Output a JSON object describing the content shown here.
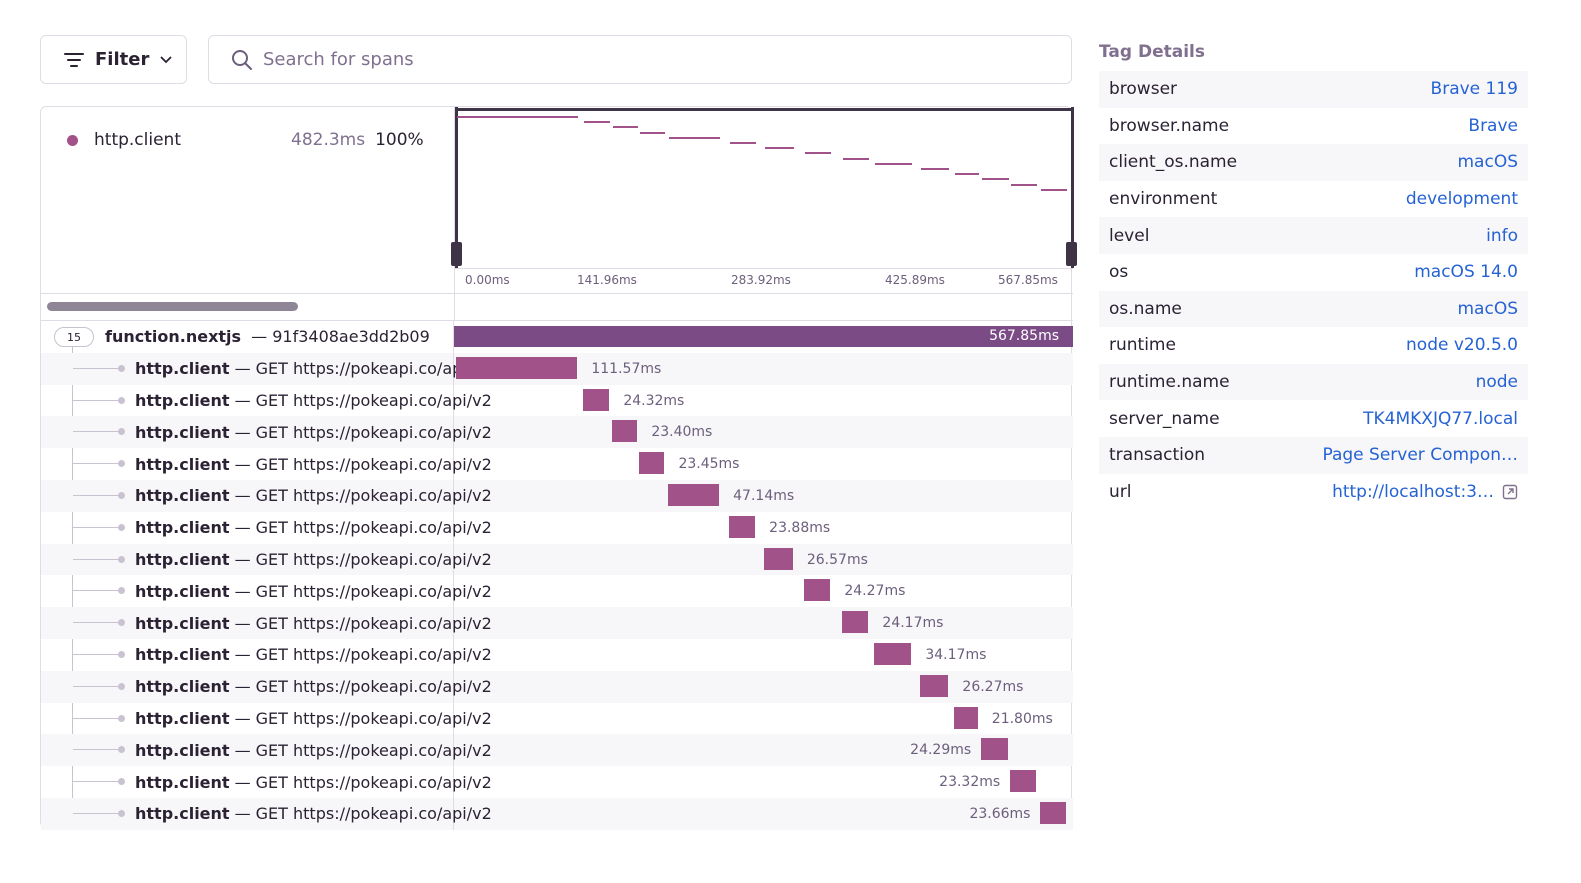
{
  "toolbar": {
    "filter_label": "Filter",
    "search_placeholder": "Search for spans"
  },
  "minimap": {
    "legend_name": "http.client",
    "legend_duration": "482.3ms",
    "legend_percent": "100%",
    "ticks": [
      "0.00ms",
      "141.96ms",
      "283.92ms",
      "425.89ms",
      "567.85ms"
    ]
  },
  "root": {
    "count": "15",
    "op": "function.nextjs",
    "separator": " — ",
    "id": "91f3408ae3dd2b09",
    "duration": "567.85ms"
  },
  "total_ms": 567.85,
  "spans": [
    {
      "op": "http.client",
      "desc": "— GET https://pokeapi.co/api/v2",
      "start_ms": 1.6,
      "dur_ms": 111.57,
      "label": "111.57ms"
    },
    {
      "op": "http.client",
      "desc": "— GET https://pokeapi.co/api/v2",
      "start_ms": 118.2,
      "dur_ms": 24.32,
      "label": "24.32ms"
    },
    {
      "op": "http.client",
      "desc": "— GET https://pokeapi.co/api/v2",
      "start_ms": 144.8,
      "dur_ms": 23.4,
      "label": "23.40ms"
    },
    {
      "op": "http.client",
      "desc": "— GET https://pokeapi.co/api/v2",
      "start_ms": 169.6,
      "dur_ms": 23.45,
      "label": "23.45ms"
    },
    {
      "op": "http.client",
      "desc": "— GET https://pokeapi.co/api/v2",
      "start_ms": 196.1,
      "dur_ms": 47.14,
      "label": "47.14ms"
    },
    {
      "op": "http.client",
      "desc": "— GET https://pokeapi.co/api/v2",
      "start_ms": 252.4,
      "dur_ms": 23.88,
      "label": "23.88ms"
    },
    {
      "op": "http.client",
      "desc": "— GET https://pokeapi.co/api/v2",
      "start_ms": 284.3,
      "dur_ms": 26.57,
      "label": "26.57ms"
    },
    {
      "op": "http.client",
      "desc": "— GET https://pokeapi.co/api/v2",
      "start_ms": 321.0,
      "dur_ms": 24.27,
      "label": "24.27ms"
    },
    {
      "op": "http.client",
      "desc": "— GET https://pokeapi.co/api/v2",
      "start_ms": 356.0,
      "dur_ms": 24.17,
      "label": "24.17ms"
    },
    {
      "op": "http.client",
      "desc": "— GET https://pokeapi.co/api/v2",
      "start_ms": 385.4,
      "dur_ms": 34.17,
      "label": "34.17ms"
    },
    {
      "op": "http.client",
      "desc": "— GET https://pokeapi.co/api/v2",
      "start_ms": 427.3,
      "dur_ms": 26.27,
      "label": "26.27ms"
    },
    {
      "op": "http.client",
      "desc": "— GET https://pokeapi.co/api/v2",
      "start_ms": 458.7,
      "dur_ms": 21.8,
      "label": "21.80ms"
    },
    {
      "op": "http.client",
      "desc": "— GET https://pokeapi.co/api/v2",
      "start_ms": 483.6,
      "dur_ms": 24.29,
      "label": "24.29ms"
    },
    {
      "op": "http.client",
      "desc": "— GET https://pokeapi.co/api/v2",
      "start_ms": 510.2,
      "dur_ms": 23.32,
      "label": "23.32ms"
    },
    {
      "op": "http.client",
      "desc": "— GET https://pokeapi.co/api/v2",
      "start_ms": 538.0,
      "dur_ms": 23.66,
      "label": "23.66ms"
    }
  ],
  "tags": {
    "title": "Tag Details",
    "items": [
      {
        "key": "browser",
        "value": "Brave 119"
      },
      {
        "key": "browser.name",
        "value": "Brave"
      },
      {
        "key": "client_os.name",
        "value": "macOS"
      },
      {
        "key": "environment",
        "value": "development"
      },
      {
        "key": "level",
        "value": "info"
      },
      {
        "key": "os",
        "value": "macOS 14.0"
      },
      {
        "key": "os.name",
        "value": "macOS"
      },
      {
        "key": "runtime",
        "value": "node v20.5.0"
      },
      {
        "key": "runtime.name",
        "value": "node"
      },
      {
        "key": "server_name",
        "value": "TK4MKXJQ77.local"
      },
      {
        "key": "transaction",
        "value": "Page Server Compon…"
      },
      {
        "key": "url",
        "value": "http://localhost:3…"
      }
    ]
  },
  "colors": {
    "span": "#a15389",
    "root": "#7b4b85",
    "link": "#2562d4"
  }
}
